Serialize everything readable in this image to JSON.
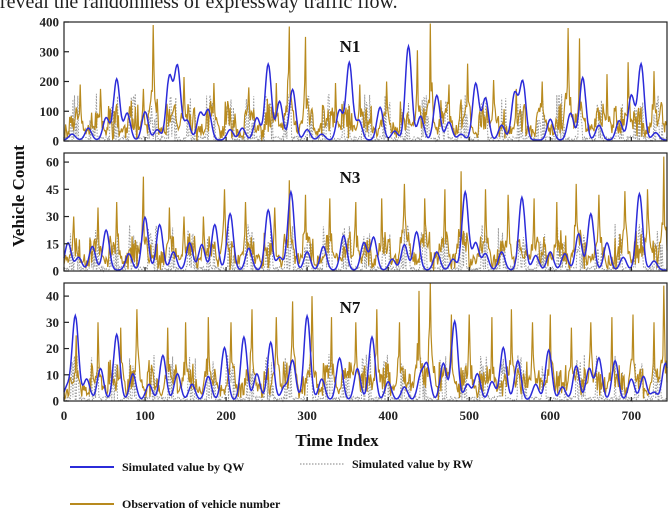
{
  "caption_text": "reveal the randomness of expressway traffic flow.",
  "colors": {
    "qw": "#2b2bd9",
    "rw": "#9a9a9a",
    "obs": "#b88a1e",
    "axis": "#222222"
  },
  "chart_data": {
    "type": "line",
    "ylabel": "Vehicle Count",
    "xlabel": "Time Index",
    "xlim": [
      0,
      744
    ],
    "xticks": [
      0,
      100,
      200,
      300,
      400,
      500,
      600,
      700
    ],
    "legend": {
      "placement": "bottom",
      "items": [
        {
          "key": "qw",
          "label": "Simulated value by QW",
          "style": "solid"
        },
        {
          "key": "rw",
          "label": "Simulated value by RW",
          "style": "dotted"
        },
        {
          "key": "obs",
          "label": "Observation of vehicle number",
          "style": "solid"
        }
      ]
    },
    "panels": [
      {
        "title": "N1",
        "ylim": [
          0,
          400
        ],
        "yticks": [
          0,
          100,
          200,
          300,
          400
        ],
        "scale": 8.0,
        "seed": 11,
        "qw_peaks": [
          [
            10,
            20
          ],
          [
            30,
            40
          ],
          [
            52,
            75
          ],
          [
            65,
            205
          ],
          [
            78,
            90
          ],
          [
            100,
            95
          ],
          [
            115,
            35
          ],
          [
            130,
            210
          ],
          [
            140,
            245
          ],
          [
            152,
            65
          ],
          [
            168,
            90
          ],
          [
            178,
            100
          ],
          [
            205,
            35
          ],
          [
            220,
            40
          ],
          [
            238,
            75
          ],
          [
            252,
            255
          ],
          [
            266,
            130
          ],
          [
            282,
            170
          ],
          [
            300,
            35
          ],
          [
            318,
            20
          ],
          [
            340,
            100
          ],
          [
            352,
            260
          ],
          [
            364,
            65
          ],
          [
            390,
            110
          ],
          [
            408,
            30
          ],
          [
            425,
            315
          ],
          [
            440,
            80
          ],
          [
            460,
            150
          ],
          [
            475,
            60
          ],
          [
            490,
            20
          ],
          [
            508,
            190
          ],
          [
            520,
            140
          ],
          [
            540,
            50
          ],
          [
            556,
            155
          ],
          [
            566,
            195
          ],
          [
            600,
            70
          ],
          [
            625,
            90
          ],
          [
            640,
            210
          ],
          [
            660,
            50
          ],
          [
            685,
            65
          ],
          [
            700,
            150
          ],
          [
            712,
            255
          ],
          [
            730,
            25
          ]
        ],
        "obs_bursts": [
          [
            20,
            190
          ],
          [
            45,
            175
          ],
          [
            98,
            175
          ],
          [
            110,
            390
          ],
          [
            148,
            215
          ],
          [
            185,
            195
          ],
          [
            228,
            180
          ],
          [
            262,
            195
          ],
          [
            278,
            385
          ],
          [
            298,
            350
          ],
          [
            335,
            195
          ],
          [
            365,
            190
          ],
          [
            398,
            200
          ],
          [
            436,
            305
          ],
          [
            452,
            395
          ],
          [
            475,
            190
          ],
          [
            498,
            260
          ],
          [
            530,
            205
          ],
          [
            558,
            175
          ],
          [
            590,
            200
          ],
          [
            622,
            380
          ],
          [
            636,
            345
          ],
          [
            670,
            225
          ],
          [
            696,
            265
          ],
          [
            728,
            235
          ],
          [
            738,
            120
          ]
        ]
      },
      {
        "title": "N3",
        "ylim": [
          0,
          65
        ],
        "yticks": [
          0,
          15,
          30,
          45,
          60
        ],
        "scale": 1.3,
        "seed": 23,
        "qw_peaks": [
          [
            5,
            15
          ],
          [
            18,
            7
          ],
          [
            35,
            13
          ],
          [
            52,
            22
          ],
          [
            80,
            9
          ],
          [
            100,
            29
          ],
          [
            118,
            25
          ],
          [
            135,
            10
          ],
          [
            155,
            15
          ],
          [
            170,
            14
          ],
          [
            186,
            25
          ],
          [
            205,
            31
          ],
          [
            228,
            12
          ],
          [
            252,
            33
          ],
          [
            266,
            7
          ],
          [
            280,
            43
          ],
          [
            300,
            10
          ],
          [
            320,
            13
          ],
          [
            345,
            19
          ],
          [
            370,
            15
          ],
          [
            382,
            18
          ],
          [
            405,
            6
          ],
          [
            420,
            14
          ],
          [
            435,
            21
          ],
          [
            460,
            10
          ],
          [
            480,
            6
          ],
          [
            495,
            43
          ],
          [
            508,
            15
          ],
          [
            520,
            9
          ],
          [
            540,
            10
          ],
          [
            565,
            40
          ],
          [
            582,
            8
          ],
          [
            600,
            10
          ],
          [
            618,
            9
          ],
          [
            635,
            20
          ],
          [
            650,
            31
          ],
          [
            670,
            15
          ],
          [
            690,
            7
          ],
          [
            710,
            42
          ],
          [
            728,
            5
          ]
        ],
        "obs_bursts": [
          [
            12,
            30
          ],
          [
            42,
            35
          ],
          [
            65,
            38
          ],
          [
            98,
            52
          ],
          [
            130,
            35
          ],
          [
            148,
            30
          ],
          [
            172,
            30
          ],
          [
            198,
            45
          ],
          [
            224,
            38
          ],
          [
            260,
            35
          ],
          [
            278,
            50
          ],
          [
            298,
            42
          ],
          [
            328,
            40
          ],
          [
            360,
            38
          ],
          [
            392,
            40
          ],
          [
            420,
            48
          ],
          [
            445,
            40
          ],
          [
            470,
            45
          ],
          [
            490,
            55
          ],
          [
            520,
            45
          ],
          [
            548,
            42
          ],
          [
            580,
            40
          ],
          [
            608,
            38
          ],
          [
            632,
            48
          ],
          [
            660,
            42
          ],
          [
            692,
            44
          ],
          [
            720,
            45
          ],
          [
            740,
            63
          ]
        ]
      },
      {
        "title": "N7",
        "ylim": [
          0,
          45
        ],
        "yticks": [
          0,
          10,
          20,
          30,
          40
        ],
        "scale": 0.9,
        "seed": 37,
        "qw_peaks": [
          [
            4,
            5
          ],
          [
            14,
            32
          ],
          [
            28,
            8
          ],
          [
            45,
            12
          ],
          [
            65,
            25
          ],
          [
            85,
            10
          ],
          [
            105,
            6
          ],
          [
            122,
            17
          ],
          [
            140,
            10
          ],
          [
            158,
            6
          ],
          [
            178,
            9
          ],
          [
            198,
            20
          ],
          [
            222,
            24
          ],
          [
            238,
            10
          ],
          [
            255,
            22
          ],
          [
            272,
            5
          ],
          [
            282,
            15
          ],
          [
            300,
            32
          ],
          [
            318,
            8
          ],
          [
            340,
            16
          ],
          [
            362,
            12
          ],
          [
            380,
            24
          ],
          [
            400,
            7
          ],
          [
            420,
            5
          ],
          [
            440,
            9
          ],
          [
            448,
            13
          ],
          [
            468,
            14
          ],
          [
            482,
            30
          ],
          [
            498,
            6
          ],
          [
            510,
            10
          ],
          [
            528,
            7
          ],
          [
            542,
            20
          ],
          [
            560,
            15
          ],
          [
            582,
            6
          ],
          [
            598,
            19
          ],
          [
            615,
            5
          ],
          [
            632,
            13
          ],
          [
            648,
            12
          ],
          [
            660,
            16
          ],
          [
            680,
            15
          ],
          [
            700,
            8
          ],
          [
            715,
            9
          ],
          [
            728,
            3
          ],
          [
            742,
            14
          ]
        ],
        "obs_bursts": [
          [
            15,
            25
          ],
          [
            42,
            30
          ],
          [
            70,
            28
          ],
          [
            90,
            35
          ],
          [
            128,
            28
          ],
          [
            150,
            30
          ],
          [
            178,
            32
          ],
          [
            206,
            30
          ],
          [
            232,
            35
          ],
          [
            262,
            32
          ],
          [
            282,
            38
          ],
          [
            306,
            40
          ],
          [
            330,
            32
          ],
          [
            360,
            30
          ],
          [
            386,
            35
          ],
          [
            414,
            30
          ],
          [
            438,
            42
          ],
          [
            452,
            46
          ],
          [
            478,
            33
          ],
          [
            500,
            33
          ],
          [
            528,
            32
          ],
          [
            552,
            35
          ],
          [
            578,
            30
          ],
          [
            600,
            33
          ],
          [
            626,
            28
          ],
          [
            650,
            30
          ],
          [
            676,
            32
          ],
          [
            702,
            33
          ],
          [
            728,
            30
          ],
          [
            740,
            44
          ]
        ]
      }
    ]
  }
}
